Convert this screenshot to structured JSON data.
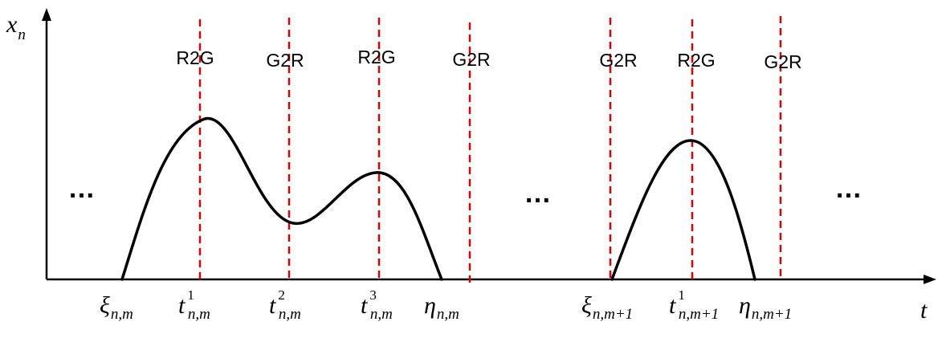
{
  "axes": {
    "y_label": "x",
    "y_label_sub": "n",
    "x_label": "t"
  },
  "signal_lines": [
    {
      "label": "R2G",
      "name": "signal-line-r2g-1"
    },
    {
      "label": "G2R",
      "name": "signal-line-g2r-1"
    },
    {
      "label": "R2G",
      "name": "signal-line-r2g-2"
    },
    {
      "label": "G2R",
      "name": "signal-line-g2r-2"
    },
    {
      "label": "G2R",
      "name": "signal-line-g2r-3"
    },
    {
      "label": "R2G",
      "name": "signal-line-r2g-3"
    },
    {
      "label": "G2R",
      "name": "signal-line-g2r-4"
    }
  ],
  "tick_labels": [
    {
      "main": "ξ",
      "sub": "n,m",
      "sup": ""
    },
    {
      "main": "t",
      "sub": "n,m",
      "sup": "1"
    },
    {
      "main": "t",
      "sub": "n,m",
      "sup": "2"
    },
    {
      "main": "t",
      "sub": "n,m",
      "sup": "3"
    },
    {
      "main": "η",
      "sub": "n,m",
      "sup": ""
    },
    {
      "main": "ξ",
      "sub": "n,m+1",
      "sup": ""
    },
    {
      "main": "t",
      "sub": "n,m+1",
      "sup": "1"
    },
    {
      "main": "η",
      "sub": "n,m+1",
      "sup": ""
    }
  ],
  "ellipses": [
    "…",
    "…",
    "…"
  ],
  "colors": {
    "curve": "#000000",
    "signal_line": "#e00000",
    "axis": "#000000"
  }
}
